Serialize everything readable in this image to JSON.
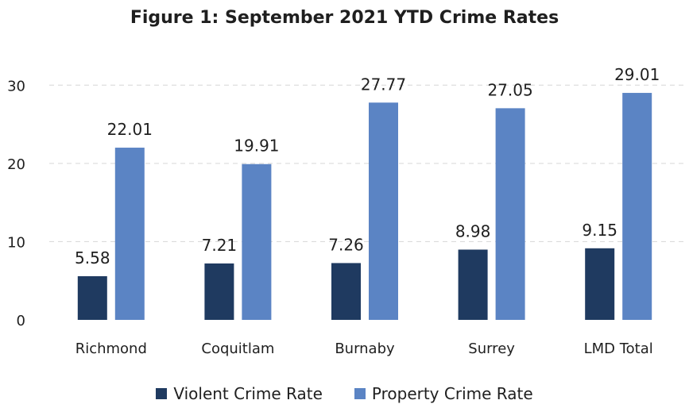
{
  "chart_data": {
    "type": "bar",
    "title": "Figure 1: September 2021 YTD Crime Rates",
    "categories": [
      "Richmond",
      "Coquitlam",
      "Burnaby",
      "Surrey",
      "LMD Total"
    ],
    "series": [
      {
        "name": "Violent Crime Rate",
        "color": "#1f3a60",
        "values": [
          5.58,
          7.21,
          7.26,
          8.98,
          9.15
        ],
        "labels": [
          "5.58",
          "7.21",
          "7.26",
          "8.98",
          "9.15"
        ]
      },
      {
        "name": "Property Crime Rate",
        "color": "#5b84c4",
        "values": [
          22.01,
          19.91,
          27.77,
          27.05,
          29.01
        ],
        "labels": [
          "22.01",
          "19.91",
          "27.77",
          "27.05",
          "29.01"
        ]
      }
    ],
    "yticks": [
      "0",
      "10",
      "20",
      "30"
    ],
    "ylim": [
      0,
      35
    ],
    "grid": true,
    "legend_position": "bottom"
  }
}
